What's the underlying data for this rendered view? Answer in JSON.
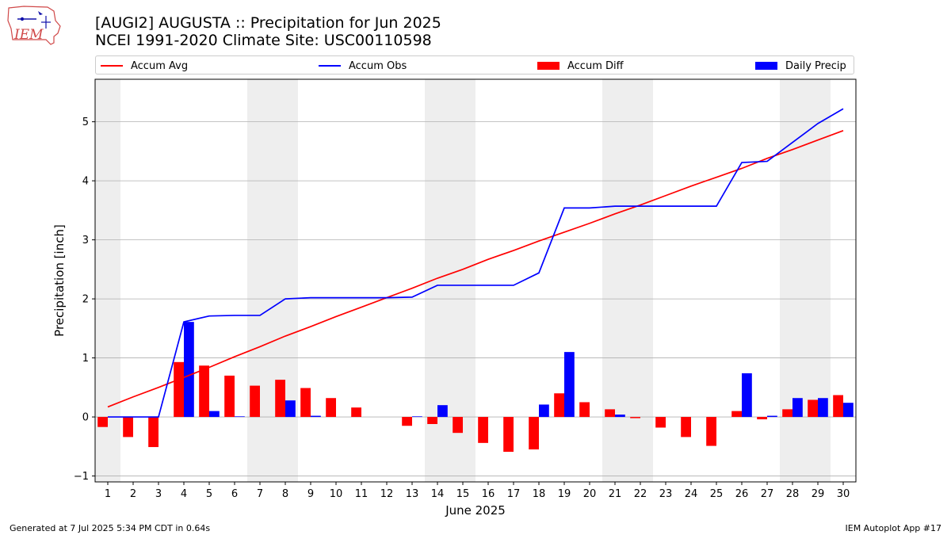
{
  "title_line1": "[AUGI2] AUGUSTA :: Precipitation for Jun 2025",
  "title_line2": "NCEI 1991-2020 Climate Site: USC00110598",
  "footer_left": "Generated at 7 Jul 2025 5:34 PM CDT in 0.64s",
  "footer_right": "IEM Autoplot App #17",
  "logo_text": "IEM",
  "legend": {
    "accum_avg": "Accum Avg",
    "accum_obs": "Accum Obs",
    "accum_diff": "Accum Diff",
    "daily_precip": "Daily Precip"
  },
  "colors": {
    "avg": "#ff0000",
    "obs": "#0000ff",
    "diff": "#ff0000",
    "daily": "#0000ff",
    "weekend_shade": "#eeeeee",
    "grid": "#b0b0b0"
  },
  "chart_data": {
    "type": "bar",
    "xlabel": "June 2025",
    "ylabel": "Precipitation [inch]",
    "ylim": [
      -1.1,
      5.72
    ],
    "yticks": [
      -1,
      0,
      1,
      2,
      3,
      4,
      5
    ],
    "grid": "horizontal",
    "legend_placement": "top",
    "days": [
      1,
      2,
      3,
      4,
      5,
      6,
      7,
      8,
      9,
      10,
      11,
      12,
      13,
      14,
      15,
      16,
      17,
      18,
      19,
      20,
      21,
      22,
      23,
      24,
      25,
      26,
      27,
      28,
      29,
      30
    ],
    "shaded_weekend_days": [
      [
        1,
        1
      ],
      [
        7,
        8
      ],
      [
        14,
        15
      ],
      [
        21,
        22
      ],
      [
        28,
        29
      ]
    ],
    "series": [
      {
        "name": "Accum Avg",
        "kind": "line",
        "values": [
          0.17,
          0.34,
          0.5,
          0.67,
          0.84,
          1.02,
          1.19,
          1.37,
          1.53,
          1.7,
          1.86,
          2.02,
          2.18,
          2.35,
          2.5,
          2.67,
          2.82,
          2.98,
          3.13,
          3.28,
          3.44,
          3.59,
          3.75,
          3.91,
          4.06,
          4.21,
          4.38,
          4.53,
          4.69,
          4.85
        ]
      },
      {
        "name": "Accum Obs",
        "kind": "line",
        "values": [
          0.0,
          0.0,
          0.0,
          1.61,
          1.71,
          1.72,
          1.72,
          2.0,
          2.02,
          2.02,
          2.02,
          2.02,
          2.03,
          2.23,
          2.23,
          2.23,
          2.23,
          2.44,
          3.54,
          3.54,
          3.57,
          3.57,
          3.57,
          3.57,
          3.57,
          4.31,
          4.33,
          4.65,
          4.97,
          5.22
        ]
      },
      {
        "name": "Accum Diff",
        "kind": "bar",
        "values": [
          -0.17,
          -0.34,
          -0.51,
          0.93,
          0.87,
          0.7,
          0.53,
          0.63,
          0.49,
          0.32,
          0.16,
          0.0,
          -0.15,
          -0.12,
          -0.27,
          -0.44,
          -0.59,
          -0.55,
          0.4,
          0.25,
          0.13,
          -0.02,
          -0.18,
          -0.34,
          -0.49,
          0.1,
          -0.04,
          0.13,
          0.29,
          0.37
        ]
      },
      {
        "name": "Daily Precip",
        "kind": "bar",
        "values": [
          0.0,
          0.0,
          0.0,
          1.61,
          0.1,
          0.01,
          0.0,
          0.28,
          0.02,
          0.0,
          0.0,
          0.0,
          0.01,
          0.2,
          0.0,
          0.0,
          0.0,
          0.21,
          1.1,
          0.0,
          0.04,
          0.0,
          0.0,
          0.0,
          0.0,
          0.74,
          0.02,
          0.32,
          0.32,
          0.24
        ]
      }
    ]
  }
}
